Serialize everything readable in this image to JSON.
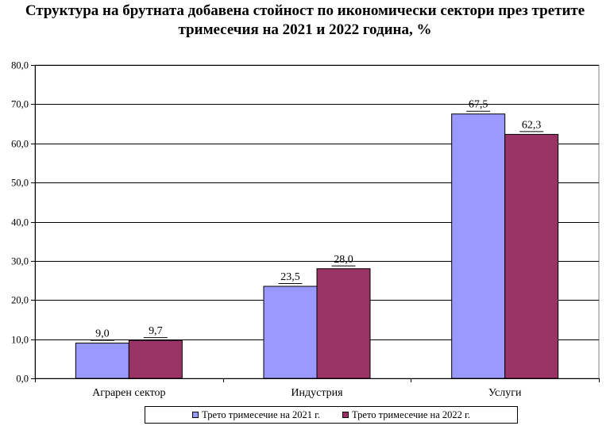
{
  "chart_data": {
    "type": "bar",
    "title": "Структура на брутната добавена стойност по икономически сектори през третите тримесечия на 2021 и 2022 година, %",
    "title_lines": [
      "Структура на брутната добавена стойност по икономически сектори през третите",
      "тримесечия на 2021 и 2022 година, %"
    ],
    "categories": [
      "Аграрен сектор",
      "Индустрия",
      "Услуги"
    ],
    "series": [
      {
        "name": "Трето тримесечие на 2021 г.",
        "values": [
          9.0,
          23.5,
          67.5
        ],
        "labels": [
          "9,0",
          "23,5",
          "67,5"
        ],
        "color": "#9999ff"
      },
      {
        "name": "Трето тримесечие на 2022 г.",
        "values": [
          9.7,
          28.0,
          62.3
        ],
        "labels": [
          "9,7",
          "28,0",
          "62,3"
        ],
        "color": "#993366"
      }
    ],
    "ylim": [
      0,
      80
    ],
    "yticks": [
      0,
      10,
      20,
      30,
      40,
      50,
      60,
      70,
      80
    ],
    "ytick_labels": [
      "0,0",
      "10,0",
      "20,0",
      "30,0",
      "40,0",
      "50,0",
      "60,0",
      "70,0",
      "80,0"
    ],
    "grid": true,
    "legend_position": "bottom",
    "xlabel": "",
    "ylabel": ""
  }
}
